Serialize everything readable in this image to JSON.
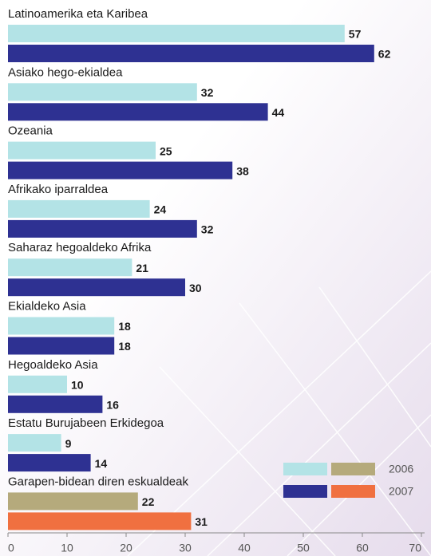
{
  "chart_data": {
    "type": "hbar",
    "categories": [
      "Latinoamerika eta Karibea",
      "Asiako hego-ekialdea",
      "Ozeania",
      "Afrikako iparraldea",
      "Saharaz hegoaldeko Afrika",
      "Ekialdeko Asia",
      "Hegoaldeko Asia",
      "Estatu Burujabeen Erkidegoa",
      "Garapen-bidean diren eskualdeak"
    ],
    "series": [
      {
        "name": "2006",
        "color": "#b3e3e6",
        "colors": [
          "#b3e3e6",
          "#b3e3e6",
          "#b3e3e6",
          "#b3e3e6",
          "#b3e3e6",
          "#b3e3e6",
          "#b3e3e6",
          "#b3e3e6",
          "#b5aa7c"
        ],
        "values": [
          57,
          32,
          25,
          24,
          21,
          18,
          10,
          9,
          22
        ]
      },
      {
        "name": "2007",
        "color": "#2e3192",
        "colors": [
          "#2e3192",
          "#2e3192",
          "#2e3192",
          "#2e3192",
          "#2e3192",
          "#2e3192",
          "#2e3192",
          "#2e3192",
          "#f07040"
        ],
        "values": [
          62,
          44,
          38,
          32,
          30,
          18,
          16,
          14,
          31
        ]
      }
    ],
    "xlim": [
      0,
      70
    ],
    "xticks": [
      0,
      10,
      20,
      30,
      40,
      50,
      60,
      70
    ],
    "legend": "lower right"
  }
}
